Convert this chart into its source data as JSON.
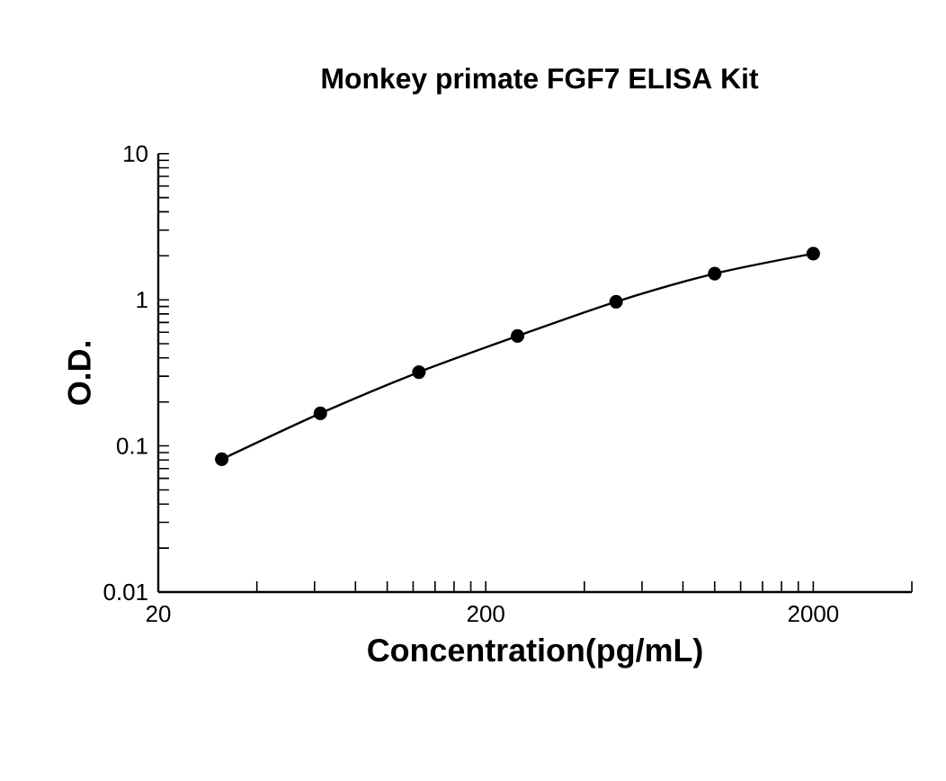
{
  "chart_data": {
    "type": "line",
    "title": "Monkey primate FGF7 ELISA Kit",
    "xlabel": "Concentration(pg/mL)",
    "ylabel": "O.D.",
    "x": [
      31.25,
      62.5,
      125,
      250,
      500,
      1000,
      2000
    ],
    "series": [
      {
        "color": "#000000",
        "values": [
          0.081,
          0.167,
          0.32,
          0.565,
          0.97,
          1.51,
          2.07
        ]
      }
    ],
    "log": "xy",
    "xlim": [
      20,
      4000
    ],
    "ylim": [
      0.01,
      10
    ],
    "xticks": [
      20,
      200,
      2000
    ],
    "yticks": [
      0.01,
      0.1,
      1,
      10
    ],
    "marker": "circle",
    "line_style": "solid"
  }
}
